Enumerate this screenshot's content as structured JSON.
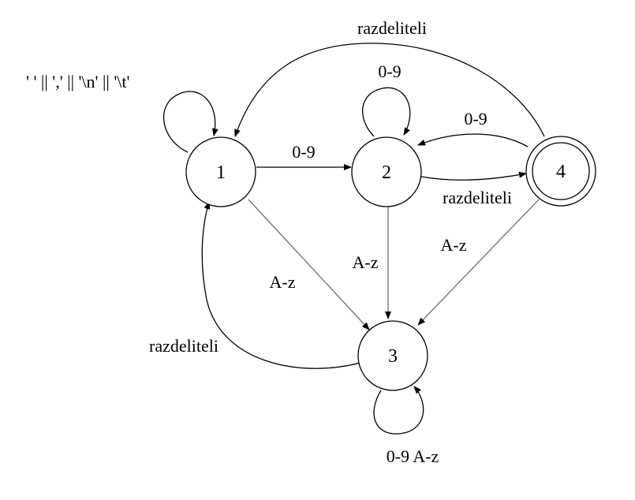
{
  "states": [
    {
      "id": "1",
      "label": "1",
      "accepting": false
    },
    {
      "id": "2",
      "label": "2",
      "accepting": false
    },
    {
      "id": "3",
      "label": "3",
      "accepting": false
    },
    {
      "id": "4",
      "label": "4",
      "accepting": true
    }
  ],
  "transitions": [
    {
      "from": "1",
      "to": "1",
      "label": "' ' || ',' || '\\n' || '\\t'"
    },
    {
      "from": "1",
      "to": "2",
      "label": "0-9"
    },
    {
      "from": "1",
      "to": "3",
      "label": "A-z"
    },
    {
      "from": "2",
      "to": "2",
      "label": "0-9"
    },
    {
      "from": "2",
      "to": "4",
      "label": "razdeliteli"
    },
    {
      "from": "2",
      "to": "3",
      "label": "A-z"
    },
    {
      "from": "4",
      "to": "2",
      "label": "0-9"
    },
    {
      "from": "4",
      "to": "1",
      "label": "razdeliteli"
    },
    {
      "from": "4",
      "to": "3",
      "label": "A-z"
    },
    {
      "from": "3",
      "to": "1",
      "label": "razdeliteli"
    },
    {
      "from": "3",
      "to": "3",
      "label": "0-9 A-z"
    }
  ]
}
